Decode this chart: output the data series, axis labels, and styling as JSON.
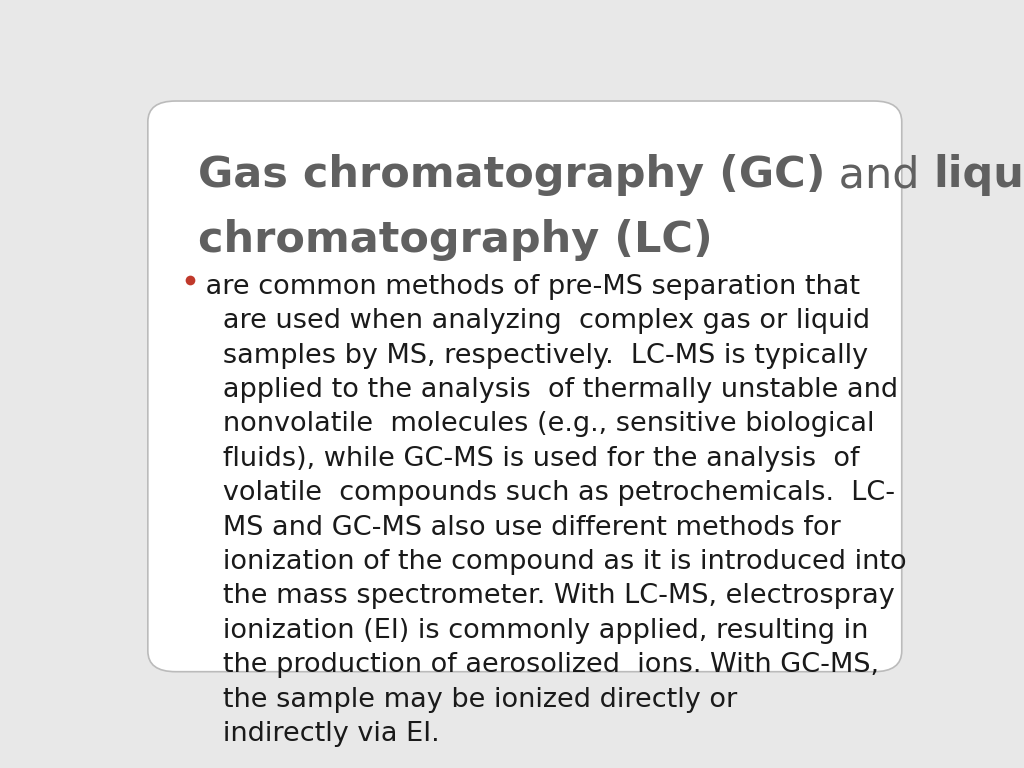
{
  "background_color": "#e8e8e8",
  "slide_background": "#ffffff",
  "title_bold1": "Gas chromatography (GC)",
  "title_normal": " and ",
  "title_bold2": "liquid",
  "title_line2": "chromatography (LC)",
  "title_color": "#606060",
  "title_fontsize": 31,
  "bullet_color": "#c0392b",
  "body_lines": [
    " are common methods of pre-MS separation that",
    "   are used when analyzing  complex gas or liquid",
    "   samples by MS, respectively.  LC-MS is typically",
    "   applied to the analysis  of thermally unstable and",
    "   nonvolatile  molecules (e.g., sensitive biological",
    "   fluids), while GC-MS is used for the analysis  of",
    "   volatile  compounds such as petrochemicals.  LC-",
    "   MS and GC-MS also use different methods for",
    "   ionization of the compound as it is introduced into",
    "   the mass spectrometer. With LC-MS, electrospray",
    "   ionization (EI) is commonly applied, resulting in",
    "   the production of aerosolized  ions. With GC-MS,",
    "   the sample may be ionized directly or",
    "   indirectly via EI."
  ],
  "body_fontsize": 19.5,
  "body_color": "#1a1a1a",
  "body_linespacing": 1.42
}
